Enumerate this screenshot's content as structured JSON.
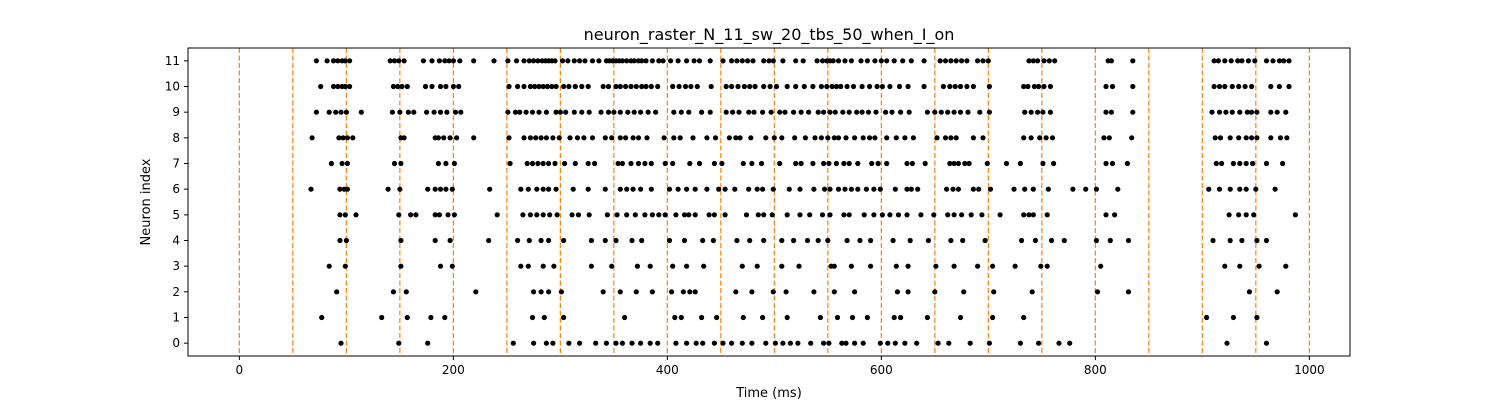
{
  "chart_data": {
    "type": "scatter",
    "title": "neuron_raster_N_11_sw_20_tbs_50_when_I_on",
    "xlabel": "Time (ms)",
    "ylabel": "Neuron index",
    "xlim": [
      -48,
      1038
    ],
    "ylim": [
      -0.5,
      11.5
    ],
    "xticks": [
      0,
      200,
      400,
      600,
      800,
      1000
    ],
    "yticks": [
      0,
      1,
      2,
      3,
      4,
      5,
      6,
      7,
      8,
      9,
      10,
      11
    ],
    "grid": false,
    "marker_color": "#000000",
    "vline_color": "#ff7f0e",
    "vlines": [
      0,
      50,
      100,
      150,
      200,
      250,
      300,
      350,
      400,
      450,
      500,
      550,
      600,
      650,
      700,
      750,
      800,
      850,
      900,
      950,
      1000
    ],
    "series": [
      {
        "name": "neuron 11",
        "y": 11,
        "spikes": [
          72,
          82,
          88,
          92,
          96,
          99,
          103,
          141,
          145,
          149,
          154,
          172,
          180,
          187,
          192,
          196,
          200,
          206,
          219,
          238,
          251,
          259,
          266,
          271,
          275,
          279,
          283,
          286,
          289,
          292,
          295,
          302,
          307,
          313,
          318,
          323,
          330,
          336,
          343,
          346,
          349,
          352,
          355,
          358,
          362,
          366,
          369,
          373,
          376,
          380,
          386,
          392,
          396,
          403,
          410,
          418,
          425,
          430,
          440,
          452,
          460,
          465,
          470,
          475,
          480,
          490,
          495,
          499,
          508,
          520,
          527,
          540,
          545,
          549,
          552,
          555,
          560,
          566,
          572,
          581,
          587,
          594,
          600,
          605,
          612,
          620,
          628,
          640,
          655,
          660,
          665,
          670,
          675,
          680,
          690,
          695,
          700,
          738,
          742,
          746,
          752,
          757,
          762,
          812,
          815,
          835,
          911,
          915,
          921,
          927,
          933,
          937,
          943,
          949,
          960,
          966,
          972,
          976,
          981
        ]
      },
      {
        "name": "neuron 10",
        "y": 10,
        "spikes": [
          76,
          88,
          92,
          96,
          99,
          103,
          144,
          148,
          152,
          157,
          174,
          180,
          188,
          193,
          200,
          205,
          252,
          260,
          266,
          272,
          276,
          280,
          284,
          288,
          292,
          296,
          303,
          308,
          314,
          320,
          326,
          340,
          345,
          352,
          356,
          361,
          366,
          371,
          376,
          380,
          385,
          391,
          405,
          411,
          417,
          422,
          428,
          441,
          455,
          460,
          466,
          472,
          477,
          482,
          490,
          496,
          502,
          512,
          520,
          528,
          536,
          544,
          549,
          554,
          558,
          562,
          568,
          574,
          582,
          589,
          596,
          601,
          608,
          617,
          625,
          640,
          658,
          664,
          669,
          674,
          680,
          686,
          701,
          733,
          737,
          743,
          747,
          752,
          758,
          810,
          816,
          835,
          911,
          916,
          921,
          928,
          934,
          940,
          946,
          964,
          972,
          981
        ]
      },
      {
        "name": "neuron 9",
        "y": 9,
        "spikes": [
          72,
          84,
          90,
          95,
          100,
          114,
          143,
          150,
          158,
          163,
          175,
          182,
          188,
          194,
          202,
          207,
          251,
          258,
          262,
          268,
          274,
          280,
          287,
          296,
          300,
          305,
          313,
          320,
          327,
          338,
          345,
          350,
          356,
          363,
          369,
          375,
          382,
          389,
          406,
          413,
          420,
          432,
          440,
          455,
          461,
          467,
          476,
          481,
          489,
          497,
          505,
          510,
          518,
          525,
          532,
          541,
          546,
          552,
          557,
          564,
          570,
          577,
          582,
          588,
          595,
          604,
          610,
          618,
          626,
          643,
          650,
          656,
          662,
          668,
          674,
          681,
          692,
          701,
          734,
          740,
          746,
          751,
          758,
          810,
          815,
          835,
          909,
          916,
          922,
          928,
          935,
          942,
          946,
          951,
          964,
          970,
          978
        ]
      },
      {
        "name": "neuron 8",
        "y": 8,
        "spikes": [
          68,
          93,
          97,
          101,
          106,
          151,
          154,
          183,
          186,
          191,
          197,
          203,
          219,
          252,
          266,
          272,
          277,
          282,
          287,
          293,
          299,
          309,
          316,
          322,
          330,
          342,
          348,
          356,
          361,
          368,
          373,
          381,
          397,
          406,
          412,
          424,
          437,
          445,
          458,
          464,
          468,
          478,
          492,
          500,
          507,
          519,
          529,
          538,
          544,
          550,
          556,
          560,
          567,
          575,
          583,
          589,
          594,
          605,
          614,
          622,
          630,
          652,
          660,
          665,
          670,
          686,
          695,
          733,
          740,
          748,
          754,
          760,
          808,
          813,
          834,
          912,
          917,
          926,
          934,
          941,
          946,
          951,
          964,
          973,
          979
        ]
      },
      {
        "name": "neuron 7",
        "y": 7,
        "spikes": [
          86,
          96,
          101,
          145,
          151,
          186,
          193,
          201,
          253,
          269,
          274,
          279,
          284,
          289,
          295,
          304,
          314,
          326,
          332,
          354,
          358,
          366,
          373,
          379,
          385,
          398,
          405,
          421,
          430,
          444,
          451,
          471,
          479,
          488,
          505,
          520,
          525,
          536,
          546,
          551,
          558,
          565,
          570,
          578,
          591,
          597,
          605,
          624,
          629,
          641,
          664,
          668,
          672,
          678,
          682,
          699,
          717,
          730,
          751,
          761,
          810,
          816,
          830,
          913,
          918,
          929,
          935,
          941,
          947,
          960,
          975
        ]
      },
      {
        "name": "neuron 6",
        "y": 6,
        "spikes": [
          67,
          94,
          98,
          101,
          139,
          150,
          176,
          183,
          188,
          193,
          199,
          234,
          263,
          270,
          278,
          284,
          289,
          296,
          312,
          326,
          342,
          356,
          362,
          368,
          375,
          385,
          402,
          410,
          418,
          426,
          437,
          448,
          454,
          463,
          476,
          484,
          489,
          499,
          514,
          524,
          537,
          547,
          552,
          560,
          566,
          572,
          578,
          586,
          593,
          599,
          613,
          624,
          628,
          634,
          661,
          667,
          672,
          686,
          691,
          702,
          724,
          734,
          742,
          756,
          779,
          791,
          801,
          821,
          906,
          916,
          926,
          935,
          941,
          950,
          968
        ]
      },
      {
        "name": "neuron 5",
        "y": 5,
        "spikes": [
          94,
          99,
          109,
          149,
          160,
          165,
          183,
          187,
          195,
          201,
          241,
          265,
          272,
          278,
          284,
          290,
          297,
          311,
          317,
          327,
          344,
          353,
          362,
          370,
          379,
          386,
          392,
          398,
          408,
          416,
          420,
          426,
          439,
          444,
          454,
          474,
          485,
          490,
          498,
          512,
          524,
          533,
          545,
          552,
          565,
          570,
          584,
          593,
          601,
          608,
          616,
          624,
          637,
          649,
          662,
          668,
          675,
          684,
          694,
          711,
          733,
          738,
          742,
          755,
          810,
          818,
          925,
          934,
          941,
          948,
          987
        ]
      },
      {
        "name": "neuron 4",
        "y": 4,
        "spikes": [
          94,
          100,
          151,
          183,
          197,
          233,
          260,
          271,
          282,
          289,
          303,
          329,
          342,
          352,
          367,
          376,
          402,
          416,
          433,
          443,
          465,
          477,
          490,
          507,
          518,
          531,
          541,
          550,
          568,
          580,
          590,
          611,
          627,
          644,
          665,
          676,
          697,
          731,
          744,
          759,
          771,
          801,
          814,
          831,
          910,
          926,
          937,
          951,
          960
        ]
      },
      {
        "name": "neuron 3",
        "y": 3,
        "spikes": [
          84,
          99,
          151,
          188,
          199,
          263,
          270,
          284,
          294,
          329,
          348,
          372,
          384,
          405,
          418,
          434,
          470,
          484,
          507,
          523,
          553,
          556,
          572,
          590,
          614,
          625,
          651,
          668,
          690,
          704,
          725,
          749,
          755,
          805,
          921,
          935,
          953,
          978
        ]
      },
      {
        "name": "neuron 2",
        "y": 2,
        "spikes": [
          91,
          144,
          156,
          221,
          275,
          282,
          289,
          301,
          340,
          356,
          371,
          386,
          404,
          415,
          421,
          426,
          464,
          479,
          499,
          511,
          537,
          556,
          575,
          615,
          625,
          650,
          677,
          705,
          741,
          802,
          831,
          944,
          970
        ]
      },
      {
        "name": "neuron 1",
        "y": 1,
        "spikes": [
          77,
          133,
          157,
          179,
          192,
          274,
          285,
          303,
          360,
          407,
          413,
          432,
          446,
          471,
          489,
          512,
          543,
          559,
          573,
          587,
          612,
          618,
          643,
          674,
          704,
          733,
          904,
          929,
          951
        ]
      },
      {
        "name": "neuron 0",
        "y": 0,
        "spikes": [
          95,
          149,
          176,
          256,
          275,
          287,
          293,
          308,
          318,
          333,
          343,
          352,
          358,
          367,
          375,
          384,
          391,
          408,
          418,
          427,
          433,
          444,
          452,
          460,
          470,
          479,
          492,
          501,
          508,
          515,
          522,
          534,
          546,
          551,
          563,
          567,
          575,
          583,
          599,
          606,
          613,
          622,
          633,
          653,
          663,
          683,
          701,
          730,
          747,
          766,
          776,
          923,
          960
        ]
      }
    ]
  }
}
